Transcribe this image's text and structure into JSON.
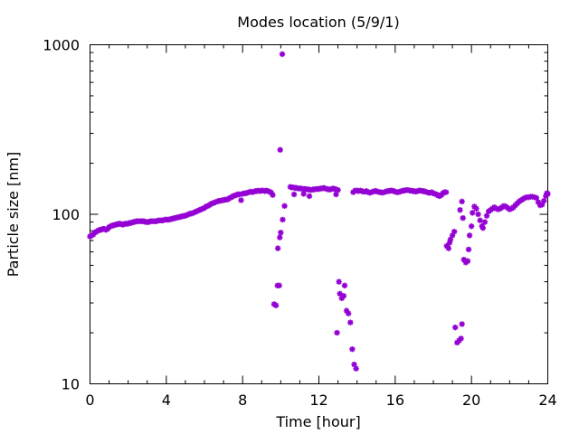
{
  "chart_data": {
    "type": "scatter",
    "title": "Modes location (5/9/1)",
    "xlabel": "Time [hour]",
    "ylabel": "Particle size [nm]",
    "xlim": [
      0,
      24
    ],
    "ylim": [
      10,
      1000
    ],
    "yscale": "log",
    "grid": false,
    "legend": "none",
    "x_ticks": [
      0,
      4,
      8,
      12,
      16,
      20,
      24
    ],
    "y_ticks": [
      10,
      100,
      1000
    ],
    "x_tick_labels": [
      "0",
      "4",
      "8",
      "12",
      "16",
      "20",
      "24"
    ],
    "y_tick_labels": [
      "10",
      "100",
      "1000"
    ],
    "series": [
      {
        "color": "#9400D3",
        "marker": "star",
        "points": [
          [
            0.0,
            74
          ],
          [
            0.08,
            75
          ],
          [
            0.17,
            76
          ],
          [
            0.25,
            78
          ],
          [
            0.33,
            79
          ],
          [
            0.42,
            80
          ],
          [
            0.5,
            81
          ],
          [
            0.58,
            81
          ],
          [
            0.67,
            82
          ],
          [
            0.75,
            82
          ],
          [
            0.83,
            81
          ],
          [
            0.92,
            82
          ],
          [
            1.0,
            84
          ],
          [
            1.08,
            85
          ],
          [
            1.17,
            86
          ],
          [
            1.25,
            86
          ],
          [
            1.33,
            87
          ],
          [
            1.42,
            87
          ],
          [
            1.5,
            88
          ],
          [
            1.58,
            88
          ],
          [
            1.67,
            87
          ],
          [
            1.75,
            87
          ],
          [
            1.83,
            88
          ],
          [
            1.92,
            88
          ],
          [
            2.0,
            88
          ],
          [
            2.08,
            89
          ],
          [
            2.17,
            89
          ],
          [
            2.25,
            90
          ],
          [
            2.33,
            90
          ],
          [
            2.42,
            91
          ],
          [
            2.5,
            91
          ],
          [
            2.58,
            91
          ],
          [
            2.67,
            91
          ],
          [
            2.75,
            91
          ],
          [
            2.83,
            91
          ],
          [
            2.92,
            90
          ],
          [
            3.0,
            90
          ],
          [
            3.08,
            90
          ],
          [
            3.17,
            91
          ],
          [
            3.25,
            91
          ],
          [
            3.33,
            91
          ],
          [
            3.42,
            91
          ],
          [
            3.5,
            91
          ],
          [
            3.58,
            92
          ],
          [
            3.67,
            92
          ],
          [
            3.75,
            92
          ],
          [
            3.83,
            92
          ],
          [
            3.92,
            93
          ],
          [
            4.0,
            93
          ],
          [
            4.08,
            93
          ],
          [
            4.17,
            93
          ],
          [
            4.25,
            94
          ],
          [
            4.33,
            94
          ],
          [
            4.42,
            95
          ],
          [
            4.5,
            95
          ],
          [
            4.58,
            96
          ],
          [
            4.67,
            96
          ],
          [
            4.75,
            97
          ],
          [
            4.83,
            97
          ],
          [
            4.92,
            98
          ],
          [
            5.0,
            98
          ],
          [
            5.08,
            99
          ],
          [
            5.17,
            100
          ],
          [
            5.25,
            101
          ],
          [
            5.33,
            101
          ],
          [
            5.42,
            102
          ],
          [
            5.5,
            103
          ],
          [
            5.58,
            104
          ],
          [
            5.67,
            105
          ],
          [
            5.75,
            106
          ],
          [
            5.83,
            107
          ],
          [
            5.92,
            108
          ],
          [
            6.0,
            109
          ],
          [
            6.08,
            111
          ],
          [
            6.17,
            112
          ],
          [
            6.25,
            113
          ],
          [
            6.33,
            115
          ],
          [
            6.42,
            116
          ],
          [
            6.5,
            117
          ],
          [
            6.58,
            118
          ],
          [
            6.67,
            119
          ],
          [
            6.75,
            120
          ],
          [
            6.83,
            120
          ],
          [
            6.92,
            121
          ],
          [
            7.0,
            121
          ],
          [
            7.08,
            122
          ],
          [
            7.17,
            122
          ],
          [
            7.25,
            123
          ],
          [
            7.33,
            125
          ],
          [
            7.42,
            126
          ],
          [
            7.5,
            128
          ],
          [
            7.58,
            129
          ],
          [
            7.67,
            130
          ],
          [
            7.75,
            131
          ],
          [
            7.83,
            131
          ],
          [
            7.92,
            121
          ],
          [
            8.0,
            132
          ],
          [
            8.08,
            133
          ],
          [
            8.17,
            133
          ],
          [
            8.25,
            134
          ],
          [
            8.33,
            135
          ],
          [
            8.42,
            136
          ],
          [
            8.5,
            135
          ],
          [
            8.58,
            136
          ],
          [
            8.67,
            137
          ],
          [
            8.75,
            137
          ],
          [
            8.83,
            138
          ],
          [
            8.92,
            137
          ],
          [
            9.0,
            138
          ],
          [
            9.08,
            138
          ],
          [
            9.17,
            137
          ],
          [
            9.25,
            138
          ],
          [
            9.33,
            137
          ],
          [
            9.42,
            136
          ],
          [
            9.5,
            134
          ],
          [
            9.58,
            130
          ],
          [
            9.65,
            29.5
          ],
          [
            9.75,
            29
          ],
          [
            9.83,
            38
          ],
          [
            9.92,
            38
          ],
          [
            9.85,
            63
          ],
          [
            9.95,
            73
          ],
          [
            10.0,
            78
          ],
          [
            10.1,
            93
          ],
          [
            10.2,
            112
          ],
          [
            9.97,
            240
          ],
          [
            10.08,
            880
          ],
          [
            10.5,
            145
          ],
          [
            10.58,
            144
          ],
          [
            10.67,
            144
          ],
          [
            10.75,
            143
          ],
          [
            10.83,
            143
          ],
          [
            10.92,
            142
          ],
          [
            11.0,
            142
          ],
          [
            11.08,
            142
          ],
          [
            11.17,
            141
          ],
          [
            11.25,
            141
          ],
          [
            11.33,
            141
          ],
          [
            11.42,
            140
          ],
          [
            11.5,
            140
          ],
          [
            11.58,
            139
          ],
          [
            11.67,
            140
          ],
          [
            11.75,
            140
          ],
          [
            11.83,
            141
          ],
          [
            11.92,
            141
          ],
          [
            12.0,
            141
          ],
          [
            12.08,
            142
          ],
          [
            12.17,
            142
          ],
          [
            12.25,
            143
          ],
          [
            12.33,
            142
          ],
          [
            12.42,
            141
          ],
          [
            12.5,
            140
          ],
          [
            12.58,
            140
          ],
          [
            12.67,
            141
          ],
          [
            12.75,
            142
          ],
          [
            12.83,
            141
          ],
          [
            12.92,
            140
          ],
          [
            13.0,
            139
          ],
          [
            10.7,
            131
          ],
          [
            11.2,
            132
          ],
          [
            11.5,
            128
          ],
          [
            12.9,
            131
          ],
          [
            12.95,
            20
          ],
          [
            13.05,
            40
          ],
          [
            13.1,
            34
          ],
          [
            13.2,
            32
          ],
          [
            13.3,
            33
          ],
          [
            13.35,
            38
          ],
          [
            13.45,
            27
          ],
          [
            13.55,
            26
          ],
          [
            13.65,
            23
          ],
          [
            13.75,
            16
          ],
          [
            13.85,
            13
          ],
          [
            13.95,
            12.3
          ],
          [
            13.8,
            135
          ],
          [
            13.9,
            138
          ],
          [
            14.0,
            138
          ],
          [
            14.08,
            137
          ],
          [
            14.17,
            138
          ],
          [
            14.25,
            137
          ],
          [
            14.33,
            136
          ],
          [
            14.42,
            136
          ],
          [
            14.5,
            137
          ],
          [
            14.58,
            135
          ],
          [
            14.67,
            134
          ],
          [
            14.75,
            135
          ],
          [
            14.83,
            136
          ],
          [
            14.92,
            137
          ],
          [
            15.0,
            137
          ],
          [
            15.08,
            136
          ],
          [
            15.17,
            135
          ],
          [
            15.25,
            135
          ],
          [
            15.33,
            134
          ],
          [
            15.42,
            135
          ],
          [
            15.5,
            136
          ],
          [
            15.58,
            137
          ],
          [
            15.67,
            137
          ],
          [
            15.75,
            138
          ],
          [
            15.83,
            138
          ],
          [
            15.92,
            137
          ],
          [
            16.0,
            136
          ],
          [
            16.08,
            135
          ],
          [
            16.17,
            135
          ],
          [
            16.25,
            136
          ],
          [
            16.33,
            137
          ],
          [
            16.42,
            138
          ],
          [
            16.5,
            138
          ],
          [
            16.58,
            139
          ],
          [
            16.67,
            139
          ],
          [
            16.75,
            138
          ],
          [
            16.83,
            138
          ],
          [
            16.92,
            137
          ],
          [
            17.0,
            137
          ],
          [
            17.08,
            136
          ],
          [
            17.17,
            137
          ],
          [
            17.25,
            138
          ],
          [
            17.33,
            138
          ],
          [
            17.42,
            137
          ],
          [
            17.5,
            137
          ],
          [
            17.58,
            136
          ],
          [
            17.67,
            135
          ],
          [
            17.75,
            134
          ],
          [
            17.83,
            134
          ],
          [
            17.92,
            135
          ],
          [
            18.0,
            133
          ],
          [
            18.08,
            132
          ],
          [
            18.17,
            131
          ],
          [
            18.25,
            129
          ],
          [
            18.33,
            128
          ],
          [
            18.42,
            130
          ],
          [
            18.5,
            133
          ],
          [
            18.58,
            135
          ],
          [
            18.67,
            135
          ],
          [
            18.7,
            65
          ],
          [
            18.8,
            63
          ],
          [
            18.85,
            68
          ],
          [
            18.9,
            71
          ],
          [
            19.0,
            75
          ],
          [
            19.1,
            79
          ],
          [
            19.15,
            21.5
          ],
          [
            19.25,
            17.5
          ],
          [
            19.35,
            18
          ],
          [
            19.45,
            18.5
          ],
          [
            19.5,
            22.5
          ],
          [
            19.4,
            106
          ],
          [
            19.5,
            119
          ],
          [
            19.55,
            95
          ],
          [
            19.6,
            54
          ],
          [
            19.7,
            52
          ],
          [
            19.8,
            53
          ],
          [
            19.85,
            62
          ],
          [
            19.9,
            75
          ],
          [
            20.0,
            85
          ],
          [
            20.05,
            102
          ],
          [
            20.15,
            111
          ],
          [
            20.25,
            108
          ],
          [
            20.35,
            100
          ],
          [
            20.45,
            92
          ],
          [
            20.55,
            85
          ],
          [
            20.6,
            83
          ],
          [
            20.7,
            90
          ],
          [
            20.8,
            98
          ],
          [
            20.9,
            104
          ],
          [
            21.0,
            106
          ],
          [
            21.1,
            108
          ],
          [
            21.2,
            110
          ],
          [
            21.3,
            108
          ],
          [
            21.4,
            107
          ],
          [
            21.5,
            108
          ],
          [
            21.6,
            110
          ],
          [
            21.7,
            112
          ],
          [
            21.8,
            111
          ],
          [
            21.9,
            109
          ],
          [
            22.0,
            107
          ],
          [
            22.1,
            108
          ],
          [
            22.2,
            110
          ],
          [
            22.3,
            113
          ],
          [
            22.4,
            116
          ],
          [
            22.5,
            119
          ],
          [
            22.6,
            121
          ],
          [
            22.7,
            123
          ],
          [
            22.8,
            125
          ],
          [
            22.9,
            126
          ],
          [
            23.0,
            126
          ],
          [
            23.1,
            127
          ],
          [
            23.2,
            127
          ],
          [
            23.3,
            126
          ],
          [
            23.4,
            125
          ],
          [
            23.5,
            118
          ],
          [
            23.6,
            113
          ],
          [
            23.7,
            114
          ],
          [
            23.8,
            120
          ],
          [
            23.9,
            128
          ],
          [
            24.0,
            132
          ],
          [
            23.95,
            133
          ]
        ]
      }
    ]
  }
}
